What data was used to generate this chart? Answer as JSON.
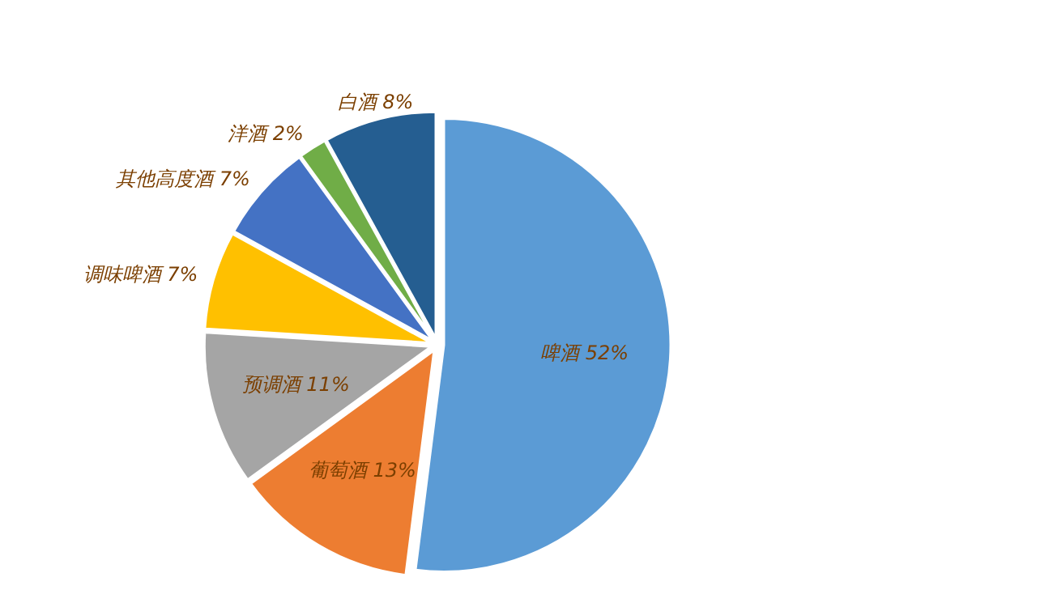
{
  "chart_data": {
    "type": "pie",
    "categories": [
      "啤酒",
      "葡萄酒",
      "预调酒",
      "调味啤酒",
      "其他高度酒",
      "洋酒",
      "白酒"
    ],
    "values": [
      52,
      13,
      11,
      7,
      7,
      2,
      8
    ],
    "colors": [
      "#5b9bd5",
      "#ed7d31",
      "#a5a5a5",
      "#ffc000",
      "#4472c4",
      "#70ad47",
      "#255e91"
    ],
    "value_labels": [
      "52%",
      "13%",
      "11%",
      "7%",
      "7%",
      "2%",
      "8%"
    ]
  }
}
